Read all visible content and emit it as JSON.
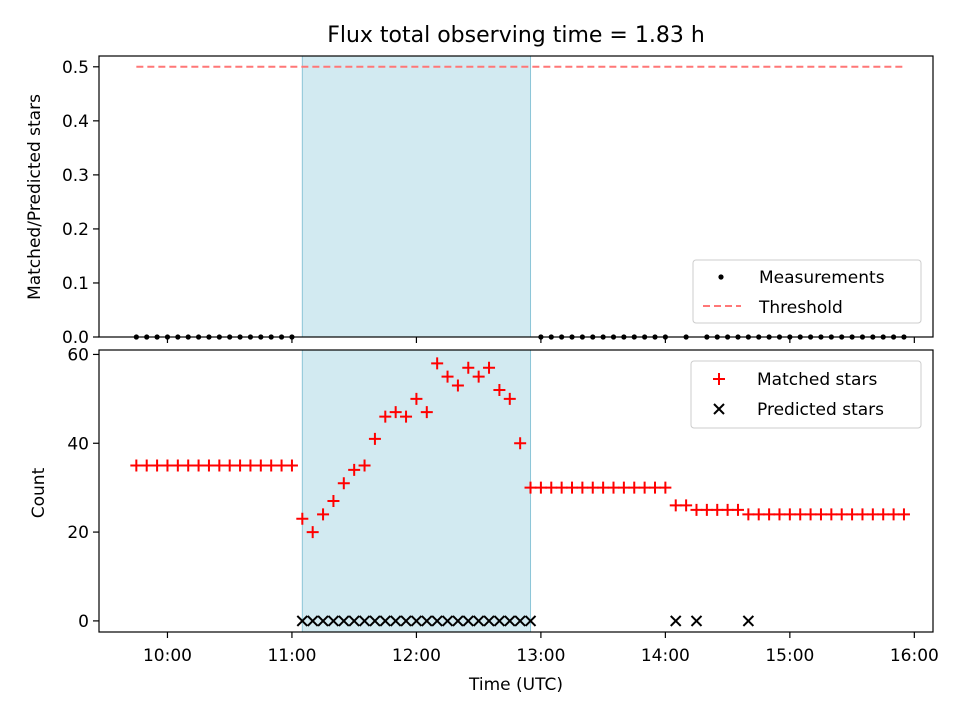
{
  "chart_data": [
    {
      "type": "scatter",
      "title": "Flux total observing time = 1.83 h",
      "ylabel": "Matched/Predicted stars",
      "xlim": [
        "09:27",
        "16:09"
      ],
      "ylim": [
        0,
        0.52
      ],
      "yticks": [
        0.0,
        0.1,
        0.2,
        0.3,
        0.4,
        0.5
      ],
      "ytick_labels": [
        "0.0",
        "0.1",
        "0.2",
        "0.3",
        "0.4",
        "0.5"
      ],
      "shaded_interval": [
        "11:05",
        "12:55"
      ],
      "shade_color": "#add8e6",
      "legend": {
        "placement": "lower-right",
        "entries": [
          "Measurements",
          "Threshold"
        ]
      },
      "series": [
        {
          "name": "Measurements",
          "marker": "dot",
          "color": "#000000",
          "x": [
            "09:45",
            "09:50",
            "09:55",
            "10:00",
            "10:05",
            "10:10",
            "10:15",
            "10:20",
            "10:25",
            "10:30",
            "10:35",
            "10:40",
            "10:45",
            "10:50",
            "10:55",
            "11:00",
            "13:00",
            "13:05",
            "13:10",
            "13:15",
            "13:20",
            "13:25",
            "13:30",
            "13:35",
            "13:40",
            "13:45",
            "13:50",
            "13:55",
            "14:00",
            "14:10",
            "14:20",
            "14:25",
            "14:30",
            "14:35",
            "14:40",
            "14:45",
            "14:50",
            "14:55",
            "15:00",
            "15:05",
            "15:10",
            "15:15",
            "15:20",
            "15:25",
            "15:30",
            "15:35",
            "15:40",
            "15:45",
            "15:50",
            "15:55"
          ],
          "y": [
            0,
            0,
            0,
            0,
            0,
            0,
            0,
            0,
            0,
            0,
            0,
            0,
            0,
            0,
            0,
            0,
            0,
            0,
            0,
            0,
            0,
            0,
            0,
            0,
            0,
            0,
            0,
            0,
            0,
            0,
            0,
            0,
            0,
            0,
            0,
            0,
            0,
            0,
            0,
            0,
            0,
            0,
            0,
            0,
            0,
            0,
            0,
            0,
            0,
            0
          ]
        },
        {
          "name": "Threshold",
          "style": "dashed",
          "color": "#ff7777",
          "x": [
            "09:45",
            "15:55"
          ],
          "y": [
            0.5,
            0.5
          ]
        }
      ]
    },
    {
      "type": "scatter",
      "title": "",
      "xlabel": "Time (UTC)",
      "ylabel": "Count",
      "xlim": [
        "09:27",
        "16:09"
      ],
      "ylim": [
        -2.5,
        61
      ],
      "yticks": [
        0,
        20,
        40,
        60
      ],
      "ytick_labels": [
        "0",
        "20",
        "40",
        "60"
      ],
      "xticks": [
        "10:00",
        "11:00",
        "12:00",
        "13:00",
        "14:00",
        "15:00",
        "16:00"
      ],
      "xtick_labels": [
        "10:00",
        "11:00",
        "12:00",
        "13:00",
        "14:00",
        "15:00",
        "16:00"
      ],
      "shaded_interval": [
        "11:05",
        "12:55"
      ],
      "shade_color": "#add8e6",
      "legend": {
        "placement": "top-right",
        "entries": [
          "Matched stars",
          "Predicted stars"
        ]
      },
      "series": [
        {
          "name": "Matched stars",
          "marker": "plus",
          "color": "#ff0000",
          "x": [
            "09:45",
            "09:50",
            "09:55",
            "10:00",
            "10:05",
            "10:10",
            "10:15",
            "10:20",
            "10:25",
            "10:30",
            "10:35",
            "10:40",
            "10:45",
            "10:50",
            "10:55",
            "11:00",
            "11:05",
            "11:10",
            "11:15",
            "11:20",
            "11:25",
            "11:30",
            "11:35",
            "11:40",
            "11:45",
            "11:50",
            "11:55",
            "12:00",
            "12:05",
            "12:10",
            "12:15",
            "12:20",
            "12:25",
            "12:30",
            "12:35",
            "12:40",
            "12:45",
            "12:50",
            "12:55",
            "13:00",
            "13:05",
            "13:10",
            "13:15",
            "13:20",
            "13:25",
            "13:30",
            "13:35",
            "13:40",
            "13:45",
            "13:50",
            "13:55",
            "14:00",
            "14:05",
            "14:10",
            "14:15",
            "14:20",
            "14:25",
            "14:30",
            "14:35",
            "14:40",
            "14:45",
            "14:50",
            "14:55",
            "15:00",
            "15:05",
            "15:10",
            "15:15",
            "15:20",
            "15:25",
            "15:30",
            "15:35",
            "15:40",
            "15:45",
            "15:50",
            "15:55"
          ],
          "y": [
            35,
            35,
            35,
            35,
            35,
            35,
            35,
            35,
            35,
            35,
            35,
            35,
            35,
            35,
            35,
            35,
            23,
            20,
            24,
            27,
            31,
            34,
            35,
            41,
            46,
            47,
            46,
            50,
            47,
            58,
            55,
            53,
            57,
            55,
            57,
            52,
            50,
            40,
            30,
            30,
            30,
            30,
            30,
            30,
            30,
            30,
            30,
            30,
            30,
            30,
            30,
            30,
            26,
            26,
            25,
            25,
            25,
            25,
            25,
            24,
            24,
            24,
            24,
            24,
            24,
            24,
            24,
            24,
            24,
            24,
            24,
            24,
            24,
            24,
            24
          ]
        },
        {
          "name": "Predicted stars",
          "marker": "x",
          "color": "#000000",
          "x": [
            "11:05",
            "11:10",
            "11:15",
            "11:20",
            "11:25",
            "11:30",
            "11:35",
            "11:40",
            "11:45",
            "11:50",
            "11:55",
            "12:00",
            "12:05",
            "12:10",
            "12:15",
            "12:20",
            "12:25",
            "12:30",
            "12:35",
            "12:40",
            "12:45",
            "12:50",
            "12:55",
            "14:05",
            "14:15",
            "14:40"
          ],
          "y": [
            0,
            0,
            0,
            0,
            0,
            0,
            0,
            0,
            0,
            0,
            0,
            0,
            0,
            0,
            0,
            0,
            0,
            0,
            0,
            0,
            0,
            0,
            0,
            0,
            0,
            0
          ]
        }
      ]
    }
  ]
}
